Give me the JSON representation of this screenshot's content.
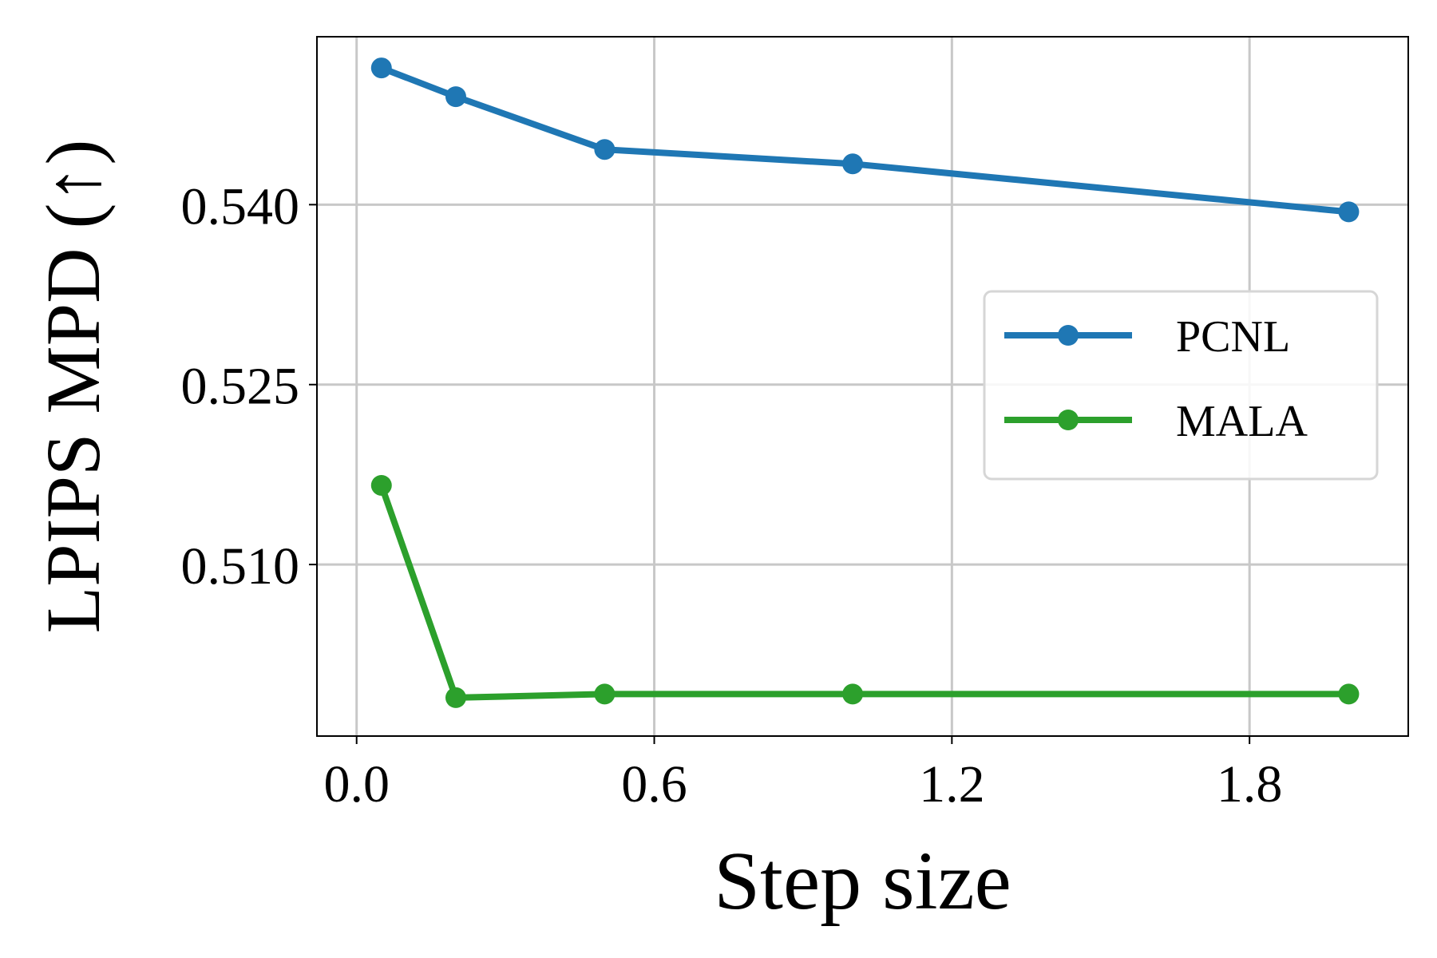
{
  "chart_data": {
    "type": "line",
    "xlabel": "Step size",
    "ylabel": "LPIPS MPD (↑)",
    "xlim": [
      -0.08,
      2.12
    ],
    "ylim": [
      0.4957,
      0.554
    ],
    "xticks": [
      0.0,
      0.6,
      1.2,
      1.8
    ],
    "xtick_labels": [
      "0.0",
      "0.6",
      "1.2",
      "1.8"
    ],
    "yticks": [
      0.51,
      0.525,
      0.54
    ],
    "ytick_labels": [
      "0.510",
      "0.525",
      "0.540"
    ],
    "grid": true,
    "legend_position": "center-right",
    "x": [
      0.05,
      0.2,
      0.5,
      1.0,
      2.0
    ],
    "series": [
      {
        "name": "PCNL",
        "color": "#1f77b4",
        "values": [
          0.5514,
          0.549,
          0.5446,
          0.5434,
          0.5394
        ]
      },
      {
        "name": "MALA",
        "color": "#2ca02c",
        "values": [
          0.5166,
          0.4989,
          0.4992,
          0.4992,
          0.4992
        ]
      }
    ]
  }
}
